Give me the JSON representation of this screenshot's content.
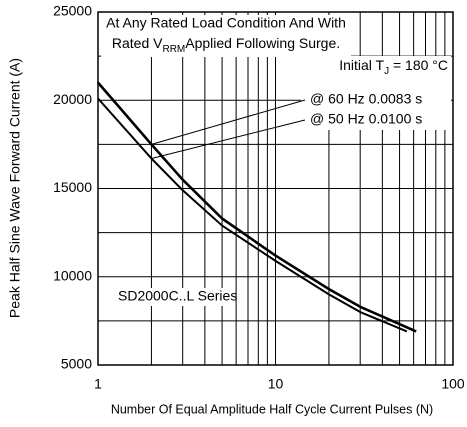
{
  "chart_data": {
    "type": "line",
    "y_label": "Peak Half Sine Wave Forward Current (A)",
    "x_label": "Number Of Equal Amplitude Half Cycle Current Pulses (N)",
    "xlog": true,
    "xlim": [
      1,
      100
    ],
    "xticks": [
      1,
      10,
      100
    ],
    "xminor": [
      2,
      3,
      4,
      5,
      6,
      7,
      8,
      9,
      20,
      30,
      40,
      50,
      60,
      70,
      80,
      90
    ],
    "ylim": [
      5000,
      25000
    ],
    "yticks": [
      5000,
      10000,
      15000,
      20000,
      25000
    ],
    "yminor": [
      7500,
      12500,
      17500,
      22500
    ],
    "grid": true,
    "annotations": {
      "header_line1": "At Any Rated Load Condition And With",
      "header_line2": [
        "Rated V",
        "RRM",
        "Applied Following Surge."
      ],
      "initial": [
        "Initial T",
        "J",
        " = 180 °C"
      ],
      "series_label": "SD2000C..L Series"
    },
    "series": [
      {
        "name": "@ 60 Hz 0.0083 s",
        "color": "#000000",
        "width": 2.6,
        "x": [
          1,
          2,
          3,
          5,
          10,
          20,
          30,
          62
        ],
        "values": [
          21000,
          17500,
          15500,
          13300,
          11200,
          9300,
          8300,
          6900
        ]
      },
      {
        "name": "@ 50 Hz 0.0100 s",
        "color": "#000000",
        "width": 2,
        "x": [
          1,
          2,
          3,
          5,
          10,
          20,
          30,
          55
        ],
        "values": [
          20100,
          16700,
          14900,
          12900,
          10900,
          9000,
          8000,
          6900
        ]
      }
    ]
  }
}
